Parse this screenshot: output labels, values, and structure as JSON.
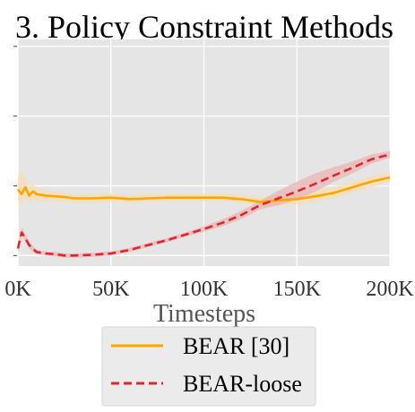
{
  "chart_data": {
    "type": "line",
    "title": "3. Policy Constraint Methods",
    "xlabel": "Timesteps",
    "ylabel": "",
    "x_ticks": [
      "0K",
      "50K",
      "100K",
      "150K",
      "200K"
    ],
    "xlim": [
      0,
      200000
    ],
    "ylim": [
      -0.15,
      3.1
    ],
    "y_gridlines": [
      0,
      1,
      2,
      3
    ],
    "grid": true,
    "background": "#e5e5e5",
    "legend_position": "bottom-outside",
    "series": [
      {
        "name": "BEAR [30]",
        "color": "#ffa500",
        "style": "solid",
        "band_color": "#f5deb3",
        "x": [
          0,
          2000,
          4000,
          6000,
          8000,
          10000,
          15000,
          20000,
          25000,
          30000,
          40000,
          50000,
          60000,
          70000,
          80000,
          90000,
          100000,
          110000,
          120000,
          130000,
          140000,
          150000,
          160000,
          170000,
          180000,
          190000,
          200000
        ],
        "y": [
          0.95,
          0.88,
          0.98,
          0.86,
          0.92,
          0.88,
          0.86,
          0.85,
          0.84,
          0.82,
          0.82,
          0.83,
          0.81,
          0.82,
          0.83,
          0.83,
          0.83,
          0.83,
          0.81,
          0.77,
          0.79,
          0.81,
          0.85,
          0.9,
          0.98,
          1.06,
          1.12
        ],
        "lower": [
          0.8,
          0.72,
          0.82,
          0.76,
          0.8,
          0.78,
          0.78,
          0.78,
          0.77,
          0.76,
          0.76,
          0.77,
          0.76,
          0.77,
          0.78,
          0.78,
          0.78,
          0.78,
          0.76,
          0.72,
          0.72,
          0.73,
          0.77,
          0.82,
          0.9,
          0.98,
          1.05
        ],
        "upper": [
          1.15,
          1.22,
          1.12,
          1.0,
          1.02,
          0.98,
          0.94,
          0.92,
          0.9,
          0.88,
          0.88,
          0.89,
          0.87,
          0.88,
          0.88,
          0.89,
          0.89,
          0.89,
          0.87,
          0.83,
          0.86,
          0.9,
          0.94,
          0.99,
          1.06,
          1.14,
          1.19
        ]
      },
      {
        "name": "BEAR-loose",
        "color": "#e3242b",
        "style": "dashed",
        "band_color": "#e8b4b4",
        "x": [
          0,
          2000,
          4000,
          6000,
          8000,
          10000,
          15000,
          20000,
          25000,
          30000,
          40000,
          50000,
          60000,
          70000,
          80000,
          90000,
          100000,
          110000,
          120000,
          130000,
          140000,
          150000,
          160000,
          170000,
          180000,
          190000,
          200000
        ],
        "y": [
          0.1,
          0.33,
          0.25,
          0.15,
          0.1,
          0.05,
          0.03,
          0.02,
          0.0,
          0.0,
          0.01,
          0.03,
          0.08,
          0.15,
          0.22,
          0.3,
          0.38,
          0.47,
          0.58,
          0.72,
          0.82,
          0.92,
          1.03,
          1.15,
          1.26,
          1.38,
          1.45
        ],
        "lower": [
          0.05,
          0.28,
          0.2,
          0.1,
          0.05,
          0.02,
          0.0,
          -0.01,
          -0.03,
          -0.03,
          -0.02,
          0.0,
          0.05,
          0.12,
          0.19,
          0.27,
          0.34,
          0.42,
          0.52,
          0.66,
          0.72,
          0.8,
          0.92,
          1.06,
          1.18,
          1.32,
          1.4
        ],
        "upper": [
          0.15,
          0.4,
          0.31,
          0.2,
          0.14,
          0.08,
          0.06,
          0.05,
          0.03,
          0.03,
          0.04,
          0.06,
          0.11,
          0.18,
          0.25,
          0.33,
          0.42,
          0.52,
          0.64,
          0.78,
          0.93,
          1.06,
          1.18,
          1.27,
          1.35,
          1.45,
          1.5
        ]
      }
    ]
  }
}
